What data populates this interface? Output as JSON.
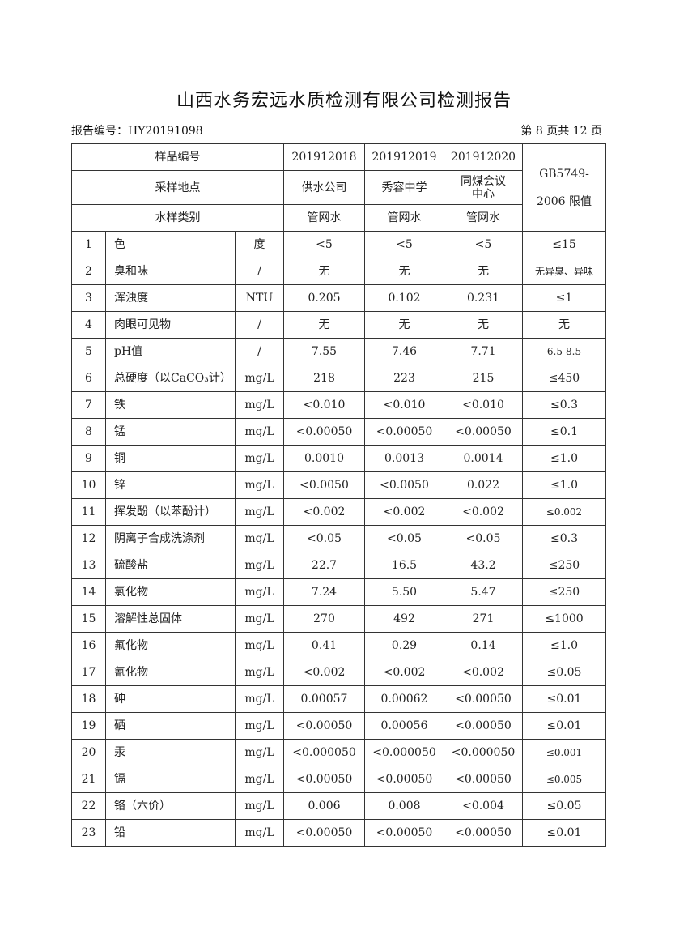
{
  "title": "山西水务宏远水质检测有限公司检测报告",
  "report_no_label": "报告编号：HY20191098",
  "page_info": "第 8 页共 12 页",
  "header": {
    "sample_no_label": "样品编号",
    "sample_nos": [
      "201912018",
      "201912019",
      "201912020"
    ],
    "location_label": "采样地点",
    "locations": [
      "供水公司",
      "秀容中学",
      "同煤会议中心"
    ],
    "type_label": "水样类别",
    "types": [
      "管网水",
      "管网水",
      "管网水"
    ],
    "limit_label": "GB5749-2006 限值"
  },
  "rows": [
    {
      "no": "1",
      "item": "色",
      "unit": "度",
      "v1": "<5",
      "v2": "<5",
      "v3": "<5",
      "limit": "≤15"
    },
    {
      "no": "2",
      "item": "臭和味",
      "unit": "/",
      "v1": "无",
      "v2": "无",
      "v3": "无",
      "limit": "无异臭、异味"
    },
    {
      "no": "3",
      "item": "浑浊度",
      "unit": "NTU",
      "v1": "0.205",
      "v2": "0.102",
      "v3": "0.231",
      "limit": "≤1"
    },
    {
      "no": "4",
      "item": "肉眼可见物",
      "unit": "/",
      "v1": "无",
      "v2": "无",
      "v3": "无",
      "limit": "无"
    },
    {
      "no": "5",
      "item": "pH值",
      "unit": "/",
      "v1": "7.55",
      "v2": "7.46",
      "v3": "7.71",
      "limit": "6.5-8.5"
    },
    {
      "no": "6",
      "item": "总硬度（以CaCO₃计）",
      "unit": "mg/L",
      "v1": "218",
      "v2": "223",
      "v3": "215",
      "limit": "≤450"
    },
    {
      "no": "7",
      "item": "铁",
      "unit": "mg/L",
      "v1": "<0.010",
      "v2": "<0.010",
      "v3": "<0.010",
      "limit": "≤0.3"
    },
    {
      "no": "8",
      "item": "锰",
      "unit": "mg/L",
      "v1": "<0.00050",
      "v2": "<0.00050",
      "v3": "<0.00050",
      "limit": "≤0.1"
    },
    {
      "no": "9",
      "item": "铜",
      "unit": "mg/L",
      "v1": "0.0010",
      "v2": "0.0013",
      "v3": "0.0014",
      "limit": "≤1.0"
    },
    {
      "no": "10",
      "item": "锌",
      "unit": "mg/L",
      "v1": "<0.0050",
      "v2": "<0.0050",
      "v3": "0.022",
      "limit": "≤1.0"
    },
    {
      "no": "11",
      "item": "挥发酚（以苯酚计）",
      "unit": "mg/L",
      "v1": "<0.002",
      "v2": "<0.002",
      "v3": "<0.002",
      "limit": "≤0.002"
    },
    {
      "no": "12",
      "item": "阴离子合成洗涤剂",
      "unit": "mg/L",
      "v1": "<0.05",
      "v2": "<0.05",
      "v3": "<0.05",
      "limit": "≤0.3"
    },
    {
      "no": "13",
      "item": "硫酸盐",
      "unit": "mg/L",
      "v1": "22.7",
      "v2": "16.5",
      "v3": "43.2",
      "limit": "≤250"
    },
    {
      "no": "14",
      "item": "氯化物",
      "unit": "mg/L",
      "v1": "7.24",
      "v2": "5.50",
      "v3": "5.47",
      "limit": "≤250"
    },
    {
      "no": "15",
      "item": "溶解性总固体",
      "unit": "mg/L",
      "v1": "270",
      "v2": "492",
      "v3": "271",
      "limit": "≤1000"
    },
    {
      "no": "16",
      "item": "氟化物",
      "unit": "mg/L",
      "v1": "0.41",
      "v2": "0.29",
      "v3": "0.14",
      "limit": "≤1.0"
    },
    {
      "no": "17",
      "item": "氰化物",
      "unit": "mg/L",
      "v1": "<0.002",
      "v2": "<0.002",
      "v3": "<0.002",
      "limit": "≤0.05"
    },
    {
      "no": "18",
      "item": "砷",
      "unit": "mg/L",
      "v1": "0.00057",
      "v2": "0.00062",
      "v3": "<0.00050",
      "limit": "≤0.01"
    },
    {
      "no": "19",
      "item": "硒",
      "unit": "mg/L",
      "v1": "<0.00050",
      "v2": "0.00056",
      "v3": "<0.00050",
      "limit": "≤0.01"
    },
    {
      "no": "20",
      "item": "汞",
      "unit": "mg/L",
      "v1": "<0.000050",
      "v2": "<0.000050",
      "v3": "<0.000050",
      "limit": "≤0.001"
    },
    {
      "no": "21",
      "item": "镉",
      "unit": "mg/L",
      "v1": "<0.00050",
      "v2": "<0.00050",
      "v3": "<0.00050",
      "limit": "≤0.005"
    },
    {
      "no": "22",
      "item": "铬（六价）",
      "unit": "mg/L",
      "v1": "0.006",
      "v2": "0.008",
      "v3": "<0.004",
      "limit": "≤0.05"
    },
    {
      "no": "23",
      "item": "铅",
      "unit": "mg/L",
      "v1": "<0.00050",
      "v2": "<0.00050",
      "v3": "<0.00050",
      "limit": "≤0.01"
    }
  ]
}
